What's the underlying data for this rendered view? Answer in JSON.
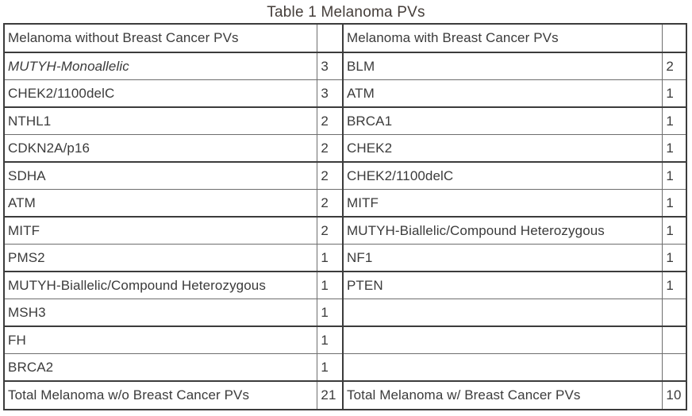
{
  "title": "Table 1 Melanoma PVs",
  "table": {
    "left": {
      "header": "Melanoma without Breast Cancer PVs",
      "rows": [
        {
          "gene": "MUTYH-Monoallelic",
          "count": "3",
          "italic": true
        },
        {
          "gene": "CHEK2/1100delC",
          "count": "3"
        },
        {
          "gene": "NTHL1",
          "count": "2"
        },
        {
          "gene": "CDKN2A/p16",
          "count": "2"
        },
        {
          "gene": "SDHA",
          "count": "2"
        },
        {
          "gene": "ATM",
          "count": "2"
        },
        {
          "gene": "MITF",
          "count": "2"
        },
        {
          "gene": "PMS2",
          "count": "1"
        },
        {
          "gene": "MUTYH-Biallelic/Compound Heterozygous",
          "count": "1"
        },
        {
          "gene": "MSH3",
          "count": "1"
        },
        {
          "gene": "FH",
          "count": "1"
        },
        {
          "gene": "BRCA2",
          "count": "1"
        }
      ],
      "total_label": "Total Melanoma w/o Breast Cancer PVs",
      "total_count": "21"
    },
    "right": {
      "header": "Melanoma with Breast Cancer PVs",
      "rows": [
        {
          "gene": "BLM",
          "count": "2"
        },
        {
          "gene": "ATM",
          "count": "1"
        },
        {
          "gene": "BRCA1",
          "count": "1"
        },
        {
          "gene": "CHEK2",
          "count": "1"
        },
        {
          "gene": "CHEK2/1100delC",
          "count": "1"
        },
        {
          "gene": "MITF",
          "count": "1"
        },
        {
          "gene": "MUTYH-Biallelic/Compound Heterozygous",
          "count": "1"
        },
        {
          "gene": "NF1",
          "count": "1"
        },
        {
          "gene": "PTEN",
          "count": "1"
        },
        {
          "gene": "",
          "count": ""
        },
        {
          "gene": "",
          "count": ""
        },
        {
          "gene": "",
          "count": ""
        }
      ],
      "total_label": "Total Melanoma w/ Breast Cancer PVs",
      "total_count": "10"
    }
  },
  "colors": {
    "text": "#3b3b3b",
    "border_thin": "#6e6e6e",
    "border_thick": "#3c3c3c",
    "background": "#ffffff"
  }
}
